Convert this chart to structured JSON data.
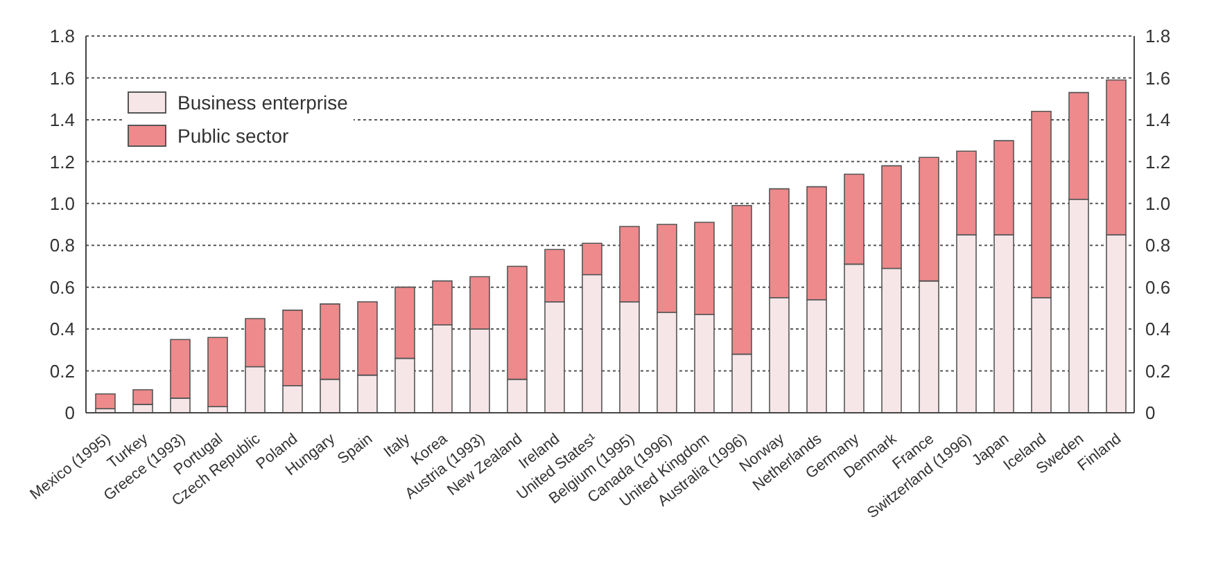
{
  "chart_data": {
    "type": "bar",
    "stacked": true,
    "categories": [
      "Mexico (1995)",
      "Turkey",
      "Greece (1993)",
      "Portugal",
      "Czech Republic",
      "Poland",
      "Hungary",
      "Spain",
      "Italy",
      "Korea",
      "Austria (1993)",
      "New Zealand",
      "Ireland",
      "United States¹",
      "Belgium (1995)",
      "Canada (1996)",
      "United Kingdom",
      "Australia (1996)",
      "Norway",
      "Netherlands",
      "Germany",
      "Denmark",
      "France",
      "Switzerland (1996)",
      "Japan",
      "Iceland",
      "Sweden",
      "Finland"
    ],
    "series": [
      {
        "name": "Business enterprise",
        "color": "#f6e6e8",
        "values": [
          0.02,
          0.04,
          0.07,
          0.03,
          0.22,
          0.13,
          0.16,
          0.18,
          0.26,
          0.42,
          0.4,
          0.16,
          0.53,
          0.66,
          0.53,
          0.48,
          0.47,
          0.28,
          0.55,
          0.54,
          0.71,
          0.69,
          0.63,
          0.85,
          0.85,
          0.55,
          1.02,
          0.85
        ]
      },
      {
        "name": "Public sector",
        "color": "#ee8a8c",
        "values": [
          0.07,
          0.07,
          0.28,
          0.33,
          0.23,
          0.36,
          0.36,
          0.35,
          0.34,
          0.21,
          0.25,
          0.54,
          0.25,
          0.15,
          0.36,
          0.42,
          0.44,
          0.71,
          0.52,
          0.54,
          0.43,
          0.49,
          0.59,
          0.4,
          0.45,
          0.89,
          0.51,
          0.74
        ]
      }
    ],
    "ylim": [
      0,
      1.8
    ],
    "yticks": [
      0,
      0.2,
      0.4,
      0.6,
      0.8,
      {
        "value": 1,
        "label": "1.0"
      },
      1.2,
      1.4,
      1.6,
      1.8
    ],
    "y2lim": [
      0,
      1.8
    ],
    "y2ticks": [
      0,
      0.2,
      0.4,
      0.6,
      0.8,
      {
        "value": 1,
        "label": "1.0"
      },
      1.2,
      1.4,
      1.6,
      1.8
    ],
    "grid": "y",
    "legend": "top left"
  }
}
